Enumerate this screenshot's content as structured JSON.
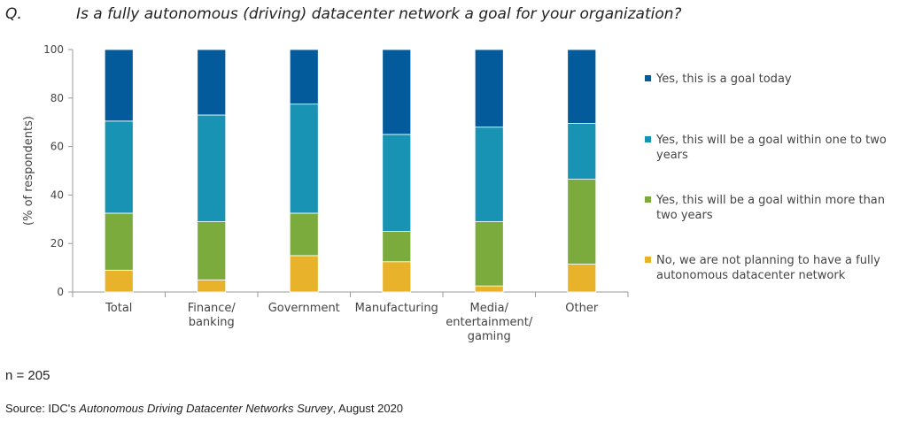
{
  "question": {
    "label": "Q.",
    "text": "Is a fully autonomous (driving) datacenter network a goal for your organization?"
  },
  "footer": {
    "sample": "n = 205",
    "source_prefix": "Source: IDC's ",
    "source_title": "Autonomous Driving Datacenter Networks Survey",
    "source_suffix": ", August 2020"
  },
  "chart_data": {
    "type": "bar",
    "stacked": true,
    "ylabel": "(% of respondents)",
    "ylim": [
      0,
      100
    ],
    "yticks": [
      0,
      20,
      40,
      60,
      80,
      100
    ],
    "grid": false,
    "legend_position": "right",
    "categories": [
      [
        "Total"
      ],
      [
        "Finance/",
        "banking"
      ],
      [
        "Government"
      ],
      [
        "Manufacturing"
      ],
      [
        "Media/",
        "entertainment/",
        "gaming"
      ],
      [
        "Other"
      ]
    ],
    "series": [
      {
        "name": "No, we are not planning to have a fully autonomous datacenter network",
        "legend_lines": [
          "No, we are not planning to have a fully",
          "autonomous datacenter network"
        ],
        "color": "#e8b22a",
        "values": [
          9,
          5,
          15,
          12.5,
          2.5,
          11.5
        ]
      },
      {
        "name": "Yes, this will be a goal within more than two years",
        "legend_lines": [
          "Yes, this will be a goal within more than",
          "two years"
        ],
        "color": "#7aab3c",
        "values": [
          23.5,
          24,
          17.5,
          12.5,
          26.5,
          35
        ]
      },
      {
        "name": "Yes, this will be a goal within one to two years",
        "legend_lines": [
          "Yes, this will be a goal within one to two",
          "years"
        ],
        "color": "#1893b3",
        "values": [
          38,
          44,
          45,
          40,
          39,
          23
        ]
      },
      {
        "name": "Yes, this is a goal today",
        "legend_lines": [
          "Yes, this is a goal today"
        ],
        "color": "#035b9b",
        "values": [
          29.5,
          27,
          22.5,
          35,
          32,
          30.5
        ]
      }
    ]
  }
}
